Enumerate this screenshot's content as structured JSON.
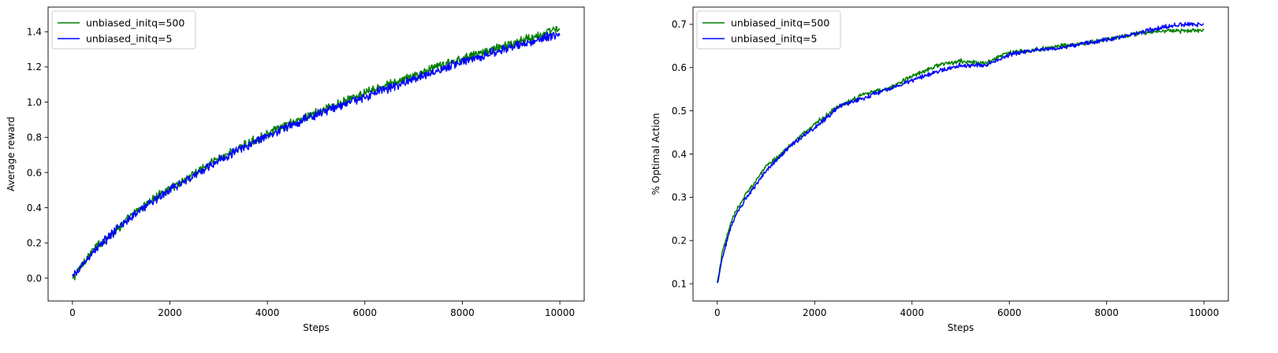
{
  "chart_data": [
    {
      "type": "line",
      "title": "",
      "xlabel": "Steps",
      "ylabel": "Average reward",
      "xlim": [
        -500,
        10500
      ],
      "ylim": [
        -0.13,
        1.54
      ],
      "xticks": [
        0,
        2000,
        4000,
        6000,
        8000,
        10000
      ],
      "yticks": [
        0.0,
        0.2,
        0.4,
        0.6,
        0.8,
        1.0,
        1.2,
        1.4
      ],
      "grid": false,
      "legend_position": "upper left",
      "series": [
        {
          "name": "unbiased_initq=500",
          "color": "#008000",
          "noise": 0.02,
          "x": [
            0,
            250,
            500,
            1000,
            1500,
            2000,
            3000,
            4000,
            5000,
            6000,
            7000,
            8000,
            9000,
            10000
          ],
          "values": [
            -0.01,
            0.1,
            0.18,
            0.3,
            0.42,
            0.51,
            0.68,
            0.82,
            0.94,
            1.05,
            1.15,
            1.25,
            1.33,
            1.42
          ]
        },
        {
          "name": "unbiased_initq=5",
          "color": "#0000ff",
          "noise": 0.02,
          "x": [
            0,
            250,
            500,
            1000,
            1500,
            2000,
            3000,
            4000,
            5000,
            6000,
            7000,
            8000,
            9000,
            10000
          ],
          "values": [
            0.0,
            0.09,
            0.17,
            0.3,
            0.41,
            0.5,
            0.67,
            0.81,
            0.93,
            1.03,
            1.13,
            1.23,
            1.31,
            1.39
          ]
        }
      ]
    },
    {
      "type": "line",
      "title": "",
      "xlabel": "Steps",
      "ylabel": "% Optimal Action",
      "xlim": [
        -500,
        10500
      ],
      "ylim": [
        0.06,
        0.74
      ],
      "xticks": [
        0,
        2000,
        4000,
        6000,
        8000,
        10000
      ],
      "yticks": [
        0.1,
        0.2,
        0.3,
        0.4,
        0.5,
        0.6,
        0.7
      ],
      "grid": false,
      "legend_position": "upper left",
      "series": [
        {
          "name": "unbiased_initq=500",
          "color": "#008000",
          "noise": 0.004,
          "x": [
            0,
            100,
            300,
            600,
            1000,
            1500,
            2000,
            2500,
            3000,
            3500,
            4000,
            4500,
            5000,
            5500,
            6000,
            6500,
            7000,
            7500,
            8000,
            8500,
            9000,
            9500,
            10000
          ],
          "values": [
            0.1,
            0.17,
            0.25,
            0.31,
            0.37,
            0.42,
            0.47,
            0.51,
            0.54,
            0.55,
            0.58,
            0.605,
            0.615,
            0.61,
            0.635,
            0.64,
            0.65,
            0.655,
            0.665,
            0.675,
            0.685,
            0.685,
            0.685
          ]
        },
        {
          "name": "unbiased_initq=5",
          "color": "#0000ff",
          "noise": 0.004,
          "x": [
            0,
            100,
            300,
            600,
            1000,
            1500,
            2000,
            2500,
            3000,
            3500,
            4000,
            4500,
            5000,
            5500,
            6000,
            6500,
            7000,
            7500,
            8000,
            8500,
            9000,
            9500,
            10000
          ],
          "values": [
            0.1,
            0.16,
            0.24,
            0.3,
            0.36,
            0.42,
            0.46,
            0.51,
            0.53,
            0.55,
            0.57,
            0.59,
            0.605,
            0.605,
            0.63,
            0.64,
            0.645,
            0.655,
            0.665,
            0.675,
            0.69,
            0.7,
            0.7
          ]
        }
      ]
    }
  ]
}
